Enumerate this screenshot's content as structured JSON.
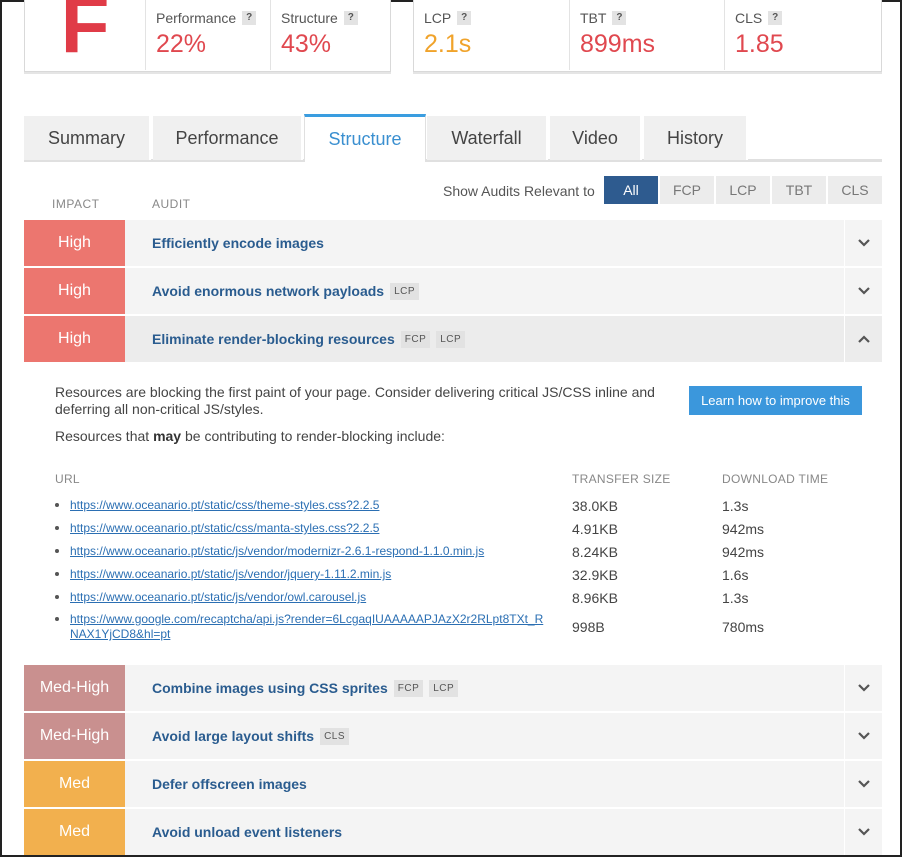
{
  "summary": {
    "grade": "F",
    "performance": {
      "label": "Performance",
      "value": "22%"
    },
    "structure": {
      "label": "Structure",
      "value": "43%"
    },
    "lcp": {
      "label": "LCP",
      "value": "2.1s"
    },
    "tbt": {
      "label": "TBT",
      "value": "899ms"
    },
    "cls": {
      "label": "CLS",
      "value": "1.85"
    },
    "help_badge": "?"
  },
  "tabs": [
    "Summary",
    "Performance",
    "Structure",
    "Waterfall",
    "Video",
    "History"
  ],
  "active_tab": "Structure",
  "audit_header": {
    "impact": "IMPACT",
    "audit": "AUDIT",
    "filter_label": "Show Audits Relevant to",
    "filters": [
      "All",
      "FCP",
      "LCP",
      "TBT",
      "CLS"
    ],
    "active_filter": "All"
  },
  "audits": [
    {
      "impact": "High",
      "title": "Efficiently encode images",
      "tags": []
    },
    {
      "impact": "High",
      "title": "Avoid enormous network payloads",
      "tags": [
        "LCP"
      ]
    },
    {
      "impact": "High",
      "title": "Eliminate render-blocking resources",
      "tags": [
        "FCP",
        "LCP"
      ]
    },
    {
      "impact": "Med-High",
      "title": "Combine images using CSS sprites",
      "tags": [
        "FCP",
        "LCP"
      ]
    },
    {
      "impact": "Med-High",
      "title": "Avoid large layout shifts",
      "tags": [
        "CLS"
      ]
    },
    {
      "impact": "Med",
      "title": "Defer offscreen images",
      "tags": []
    },
    {
      "impact": "Med",
      "title": "Avoid unload event listeners",
      "tags": []
    }
  ],
  "expanded": {
    "description": "Resources are blocking the first paint of your page. Consider delivering critical JS/CSS inline and deferring all non-critical JS/styles.",
    "note_prefix": "Resources that ",
    "note_bold": "may",
    "note_suffix": " be contributing to render-blocking include:",
    "learn_button": "Learn how to improve this",
    "columns": {
      "url": "URL",
      "size": "TRANSFER SIZE",
      "time": "DOWNLOAD TIME"
    },
    "resources": [
      {
        "url": "https://www.oceanario.pt/static/css/theme-styles.css?2.2.5",
        "size": "38.0KB",
        "time": "1.3s"
      },
      {
        "url": "https://www.oceanario.pt/static/css/manta-styles.css?2.2.5",
        "size": "4.91KB",
        "time": "942ms"
      },
      {
        "url": "https://www.oceanario.pt/static/js/vendor/modernizr-2.6.1-respond-1.1.0.min.js",
        "size": "8.24KB",
        "time": "942ms"
      },
      {
        "url": "https://www.oceanario.pt/static/js/vendor/jquery-1.11.2.min.js",
        "size": "32.9KB",
        "time": "1.6s"
      },
      {
        "url": "https://www.oceanario.pt/static/js/vendor/owl.carousel.js",
        "size": "8.96KB",
        "time": "1.3s"
      },
      {
        "url": "https://www.google.com/recaptcha/api.js?render=6LcgaqIUAAAAAPJAzX2r2RLpt8TXt_RNAX1YjCD8&hl=pt",
        "size": "998B",
        "time": "780ms"
      }
    ]
  }
}
